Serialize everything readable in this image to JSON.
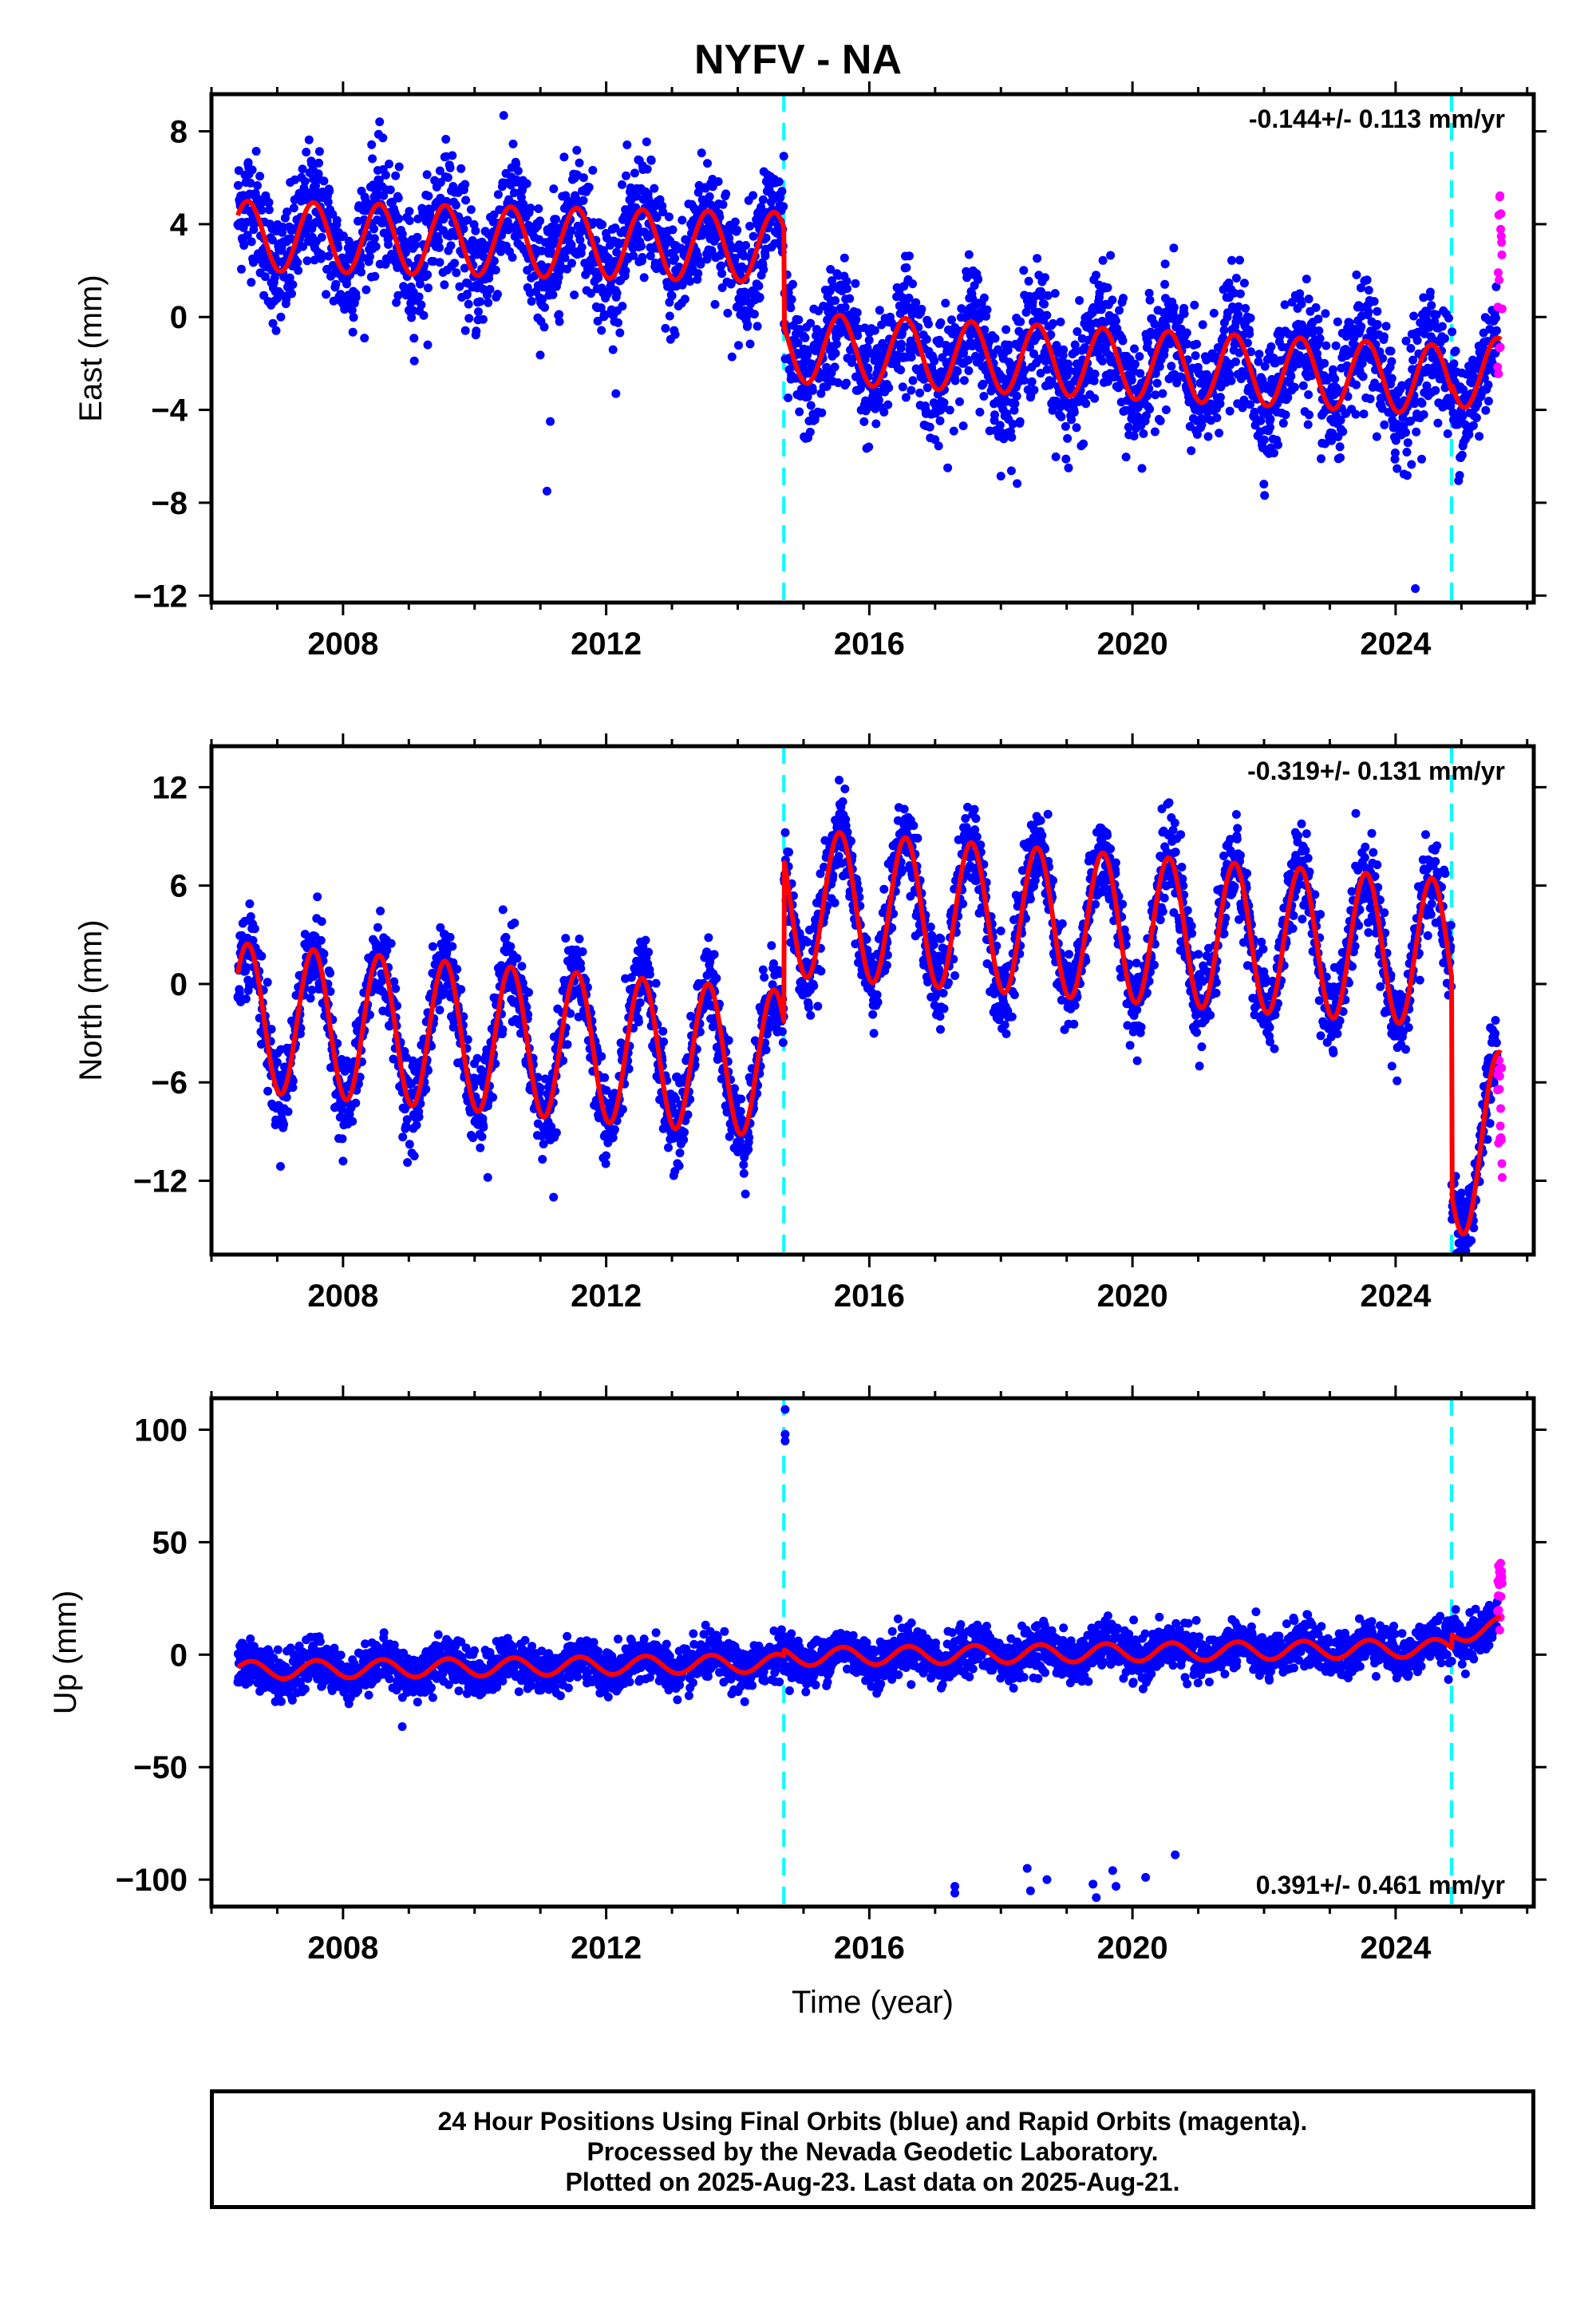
{
  "title": "NYFV - NA",
  "footer": {
    "line1": "24 Hour Positions Using Final Orbits (blue) and Rapid Orbits (magenta).",
    "line2": "Processed by the Nevada Geodetic Laboratory.",
    "line3": "Plotted on 2025-Aug-23. Last data on 2025-Aug-21."
  },
  "colors": {
    "final_orbits": "#0000ff",
    "rapid_orbits": "#ff00ff",
    "model": "#ff0000",
    "offsets": "#00ffff"
  },
  "chart_data": [
    {
      "type": "scatter",
      "panel": "east",
      "ylabel": "East (mm)",
      "xlabel": "",
      "xlim": [
        2006.0,
        2026.1
      ],
      "ylim": [
        -12.3,
        9.6
      ],
      "xticks": [
        2008,
        2012,
        2016,
        2020,
        2024
      ],
      "xtick_labels": [
        "2008",
        "2012",
        "2016",
        "2020",
        "2024"
      ],
      "yticks": [
        8,
        4,
        0,
        -4,
        -8,
        -12
      ],
      "ytick_labels": [
        "8",
        "4",
        "0",
        "−4",
        "−8",
        "−12"
      ],
      "rate": "-0.144+/- 0.113 mm/yr",
      "rate_position": "top-right",
      "offsets": [
        2014.7,
        2024.85
      ],
      "model": {
        "start": 2006.4,
        "end": 2025.6,
        "trend": -0.144,
        "segments": [
          {
            "from": 2006.4,
            "to": 2014.7,
            "level": 3.5,
            "trend": -0.06
          },
          {
            "from": 2014.7,
            "to": 2024.85,
            "level": -1.3,
            "trend": -0.14
          },
          {
            "from": 2024.85,
            "to": 2025.6,
            "level": -2.4,
            "trend": 0
          }
        ],
        "annual_amplitude": 1.5,
        "annual_peak": 0.55,
        "scatter": 1.3
      },
      "outliers": [
        [
          2011.15,
          -4.5
        ],
        [
          2011.1,
          -7.5
        ],
        [
          2024.3,
          -11.7
        ]
      ],
      "rapid": {
        "from": 2025.55,
        "to": 2025.62,
        "min": -3.2,
        "max": 5.6
      }
    },
    {
      "type": "scatter",
      "panel": "north",
      "ylabel": "North (mm)",
      "xlabel": "",
      "xlim": [
        2006.0,
        2026.1
      ],
      "ylim": [
        -16.5,
        14.5
      ],
      "xticks": [
        2008,
        2012,
        2016,
        2020,
        2024
      ],
      "xtick_labels": [
        "2008",
        "2012",
        "2016",
        "2020",
        "2024"
      ],
      "yticks": [
        12,
        6,
        0,
        -6,
        -12
      ],
      "ytick_labels": [
        "12",
        "6",
        "0",
        "−6",
        "−12"
      ],
      "rate": "-0.319+/- 0.131 mm/yr",
      "rate_position": "top-right",
      "offsets": [
        2014.7,
        2024.85
      ],
      "model": {
        "start": 2006.4,
        "end": 2025.6,
        "segments": [
          {
            "from": 2006.4,
            "to": 2014.7,
            "level": -2.0,
            "trend": -0.35
          },
          {
            "from": 2014.7,
            "to": 2024.85,
            "level": 5.0,
            "trend": -0.31
          },
          {
            "from": 2024.85,
            "to": 2025.6,
            "level": -11.5,
            "trend": 4.0
          }
        ],
        "annual_amplitude": 4.5,
        "annual_peak": 0.55,
        "scatter": 1.3
      },
      "outliers": [
        [
          2008.0,
          -10.8
        ],
        [
          2010.2,
          -11.8
        ],
        [
          2011.2,
          -13.0
        ]
      ],
      "rapid": {
        "from": 2025.55,
        "to": 2025.62,
        "min": -12.2,
        "max": -4.5
      }
    },
    {
      "type": "scatter",
      "panel": "up",
      "ylabel": "Up (mm)",
      "xlabel": "Time (year)",
      "xlim": [
        2006.0,
        2026.1
      ],
      "ylim": [
        -112,
        114
      ],
      "xticks": [
        2008,
        2012,
        2016,
        2020,
        2024
      ],
      "xtick_labels": [
        "2008",
        "2012",
        "2016",
        "2020",
        "2024"
      ],
      "yticks": [
        100,
        50,
        0,
        -50,
        -100
      ],
      "ytick_labels": [
        "100",
        "50",
        "0",
        "−50",
        "−100"
      ],
      "rate": "0.391+/- 0.461 mm/yr",
      "rate_position": "bottom-right",
      "offsets": [
        2014.7,
        2024.85
      ],
      "model": {
        "start": 2006.4,
        "end": 2025.6,
        "segments": [
          {
            "from": 2006.4,
            "to": 2014.7,
            "level": -7.0,
            "trend": 0.39
          },
          {
            "from": 2014.7,
            "to": 2024.85,
            "level": -1.0,
            "trend": 0.39
          },
          {
            "from": 2024.85,
            "to": 2025.6,
            "level": 9.0,
            "trend": 5.0
          }
        ],
        "annual_amplitude": 4.0,
        "annual_peak": 0.6,
        "scatter": 5.0
      },
      "outliers": [
        [
          2014.72,
          109
        ],
        [
          2014.72,
          98
        ],
        [
          2014.72,
          95
        ],
        [
          2008.9,
          -32
        ],
        [
          2017.3,
          -106
        ],
        [
          2017.3,
          -103
        ],
        [
          2018.4,
          -95
        ],
        [
          2018.45,
          -105
        ],
        [
          2018.7,
          -100
        ],
        [
          2019.4,
          -102
        ],
        [
          2019.45,
          -108
        ],
        [
          2019.7,
          -96
        ],
        [
          2019.75,
          -103
        ],
        [
          2020.2,
          -99
        ],
        [
          2020.65,
          -89
        ]
      ],
      "rapid": {
        "from": 2025.55,
        "to": 2025.62,
        "min": 10,
        "max": 41
      }
    }
  ]
}
